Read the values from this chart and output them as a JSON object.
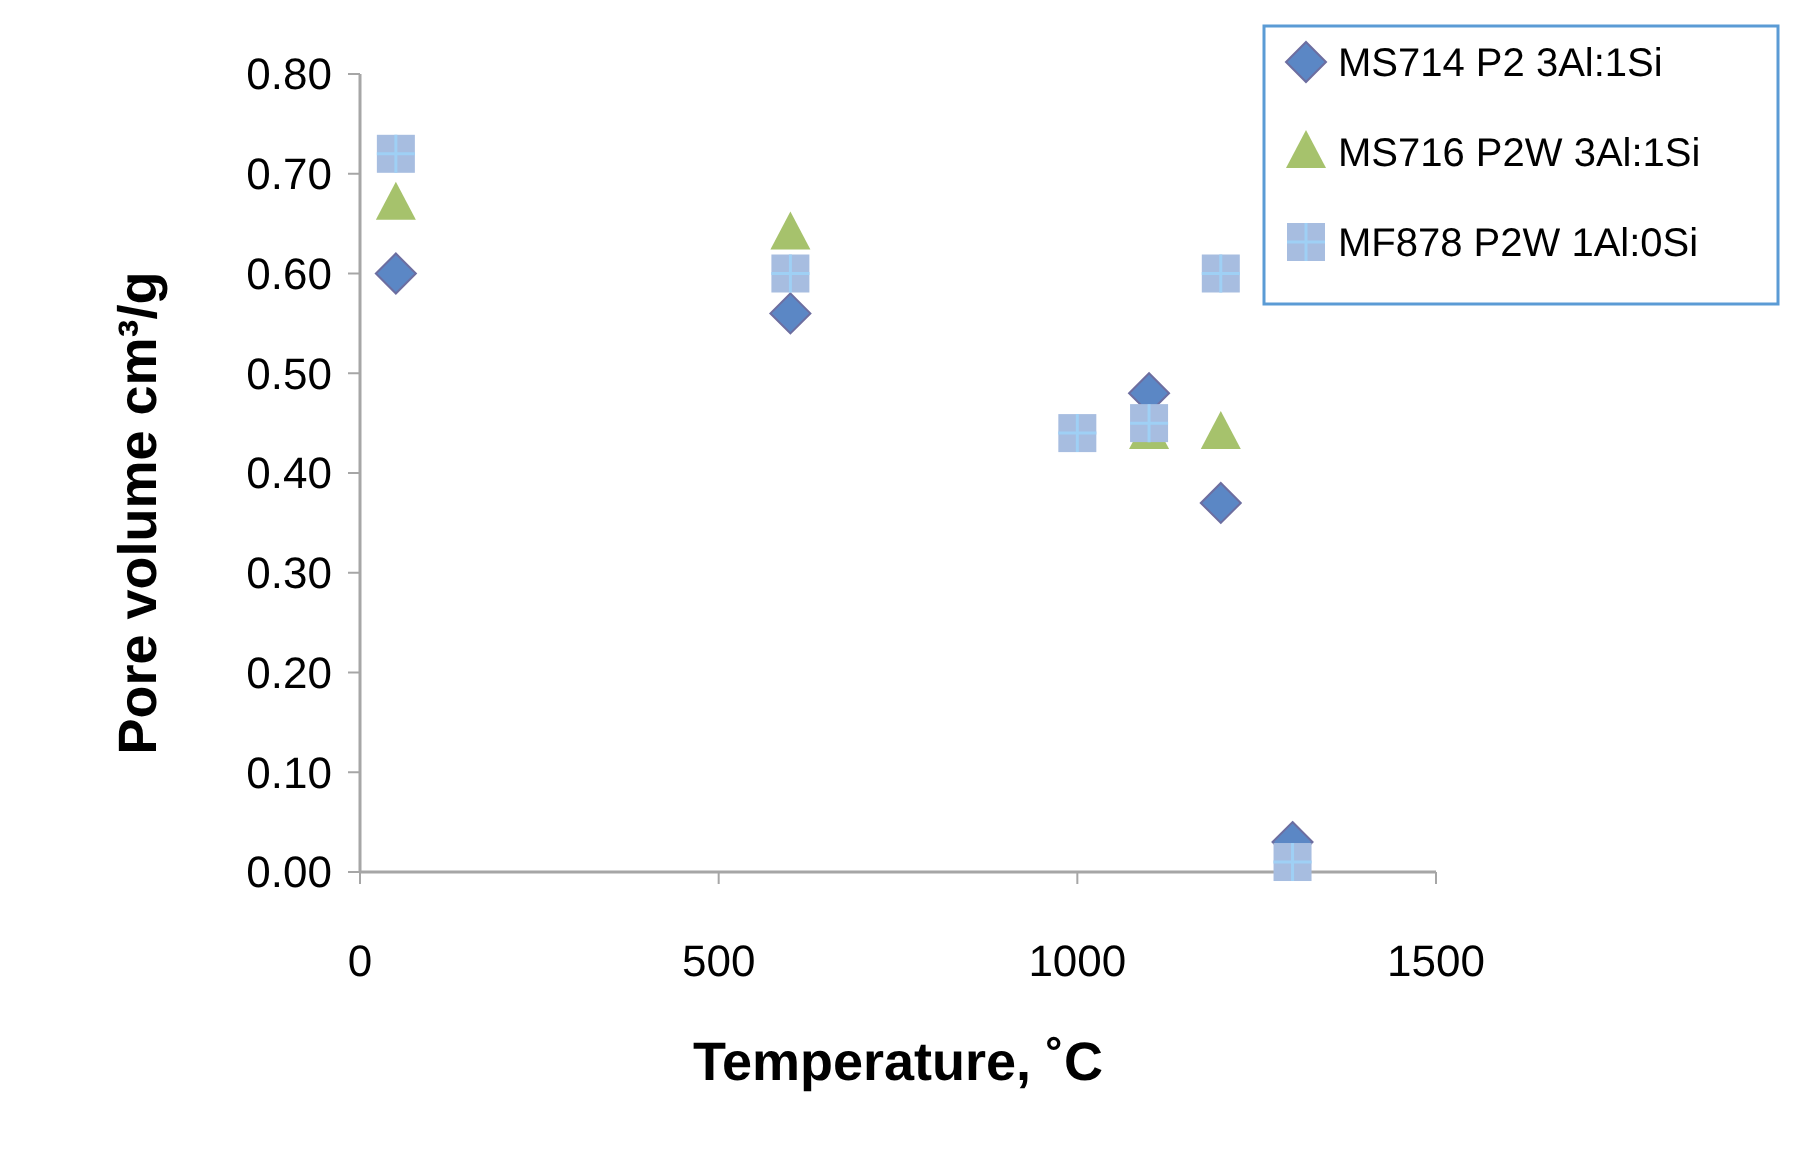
{
  "chart_data": {
    "type": "scatter",
    "xlabel": "Temperature, ˚C",
    "ylabel": "Pore volume cm³/g",
    "xlim": [
      0,
      1500
    ],
    "xticks": [
      0,
      500,
      1000,
      1500
    ],
    "ylim": [
      0,
      0.8
    ],
    "yticks": [
      {
        "value": 0,
        "label": "0.00"
      },
      {
        "value": 0.1,
        "label": "0.10"
      },
      {
        "value": 0.2,
        "label": "0.20"
      },
      {
        "value": 0.3,
        "label": "0.30"
      },
      {
        "value": 0.4,
        "label": "0.40"
      },
      {
        "value": 0.5,
        "label": "0.50"
      },
      {
        "value": 0.6,
        "label": "0.60"
      },
      {
        "value": 0.7,
        "label": "0.70"
      },
      {
        "value": 0.8,
        "label": "0.80"
      }
    ],
    "grid": false,
    "legend": "top right",
    "series": [
      {
        "name": "MS714 P2 3Al:1Si",
        "color": "#5b87c5",
        "marker": "diamond",
        "x": [
          50,
          600,
          1100,
          1200,
          1300
        ],
        "values": [
          0.6,
          0.56,
          0.48,
          0.37,
          0.03
        ]
      },
      {
        "name": "MS716 P2W 3Al:1Si",
        "color": "#a6c26c",
        "marker": "triangle",
        "x": [
          50,
          600,
          1100,
          1200
        ],
        "values": [
          0.67,
          0.64,
          0.44,
          0.44
        ]
      },
      {
        "name": "MF878 P2W 1Al:0Si",
        "color": "#a7bde0",
        "marker": "square",
        "x": [
          50,
          600,
          1000,
          1100,
          1200,
          1300
        ],
        "values": [
          0.72,
          0.6,
          0.44,
          0.45,
          0.6,
          0.01
        ]
      }
    ]
  }
}
